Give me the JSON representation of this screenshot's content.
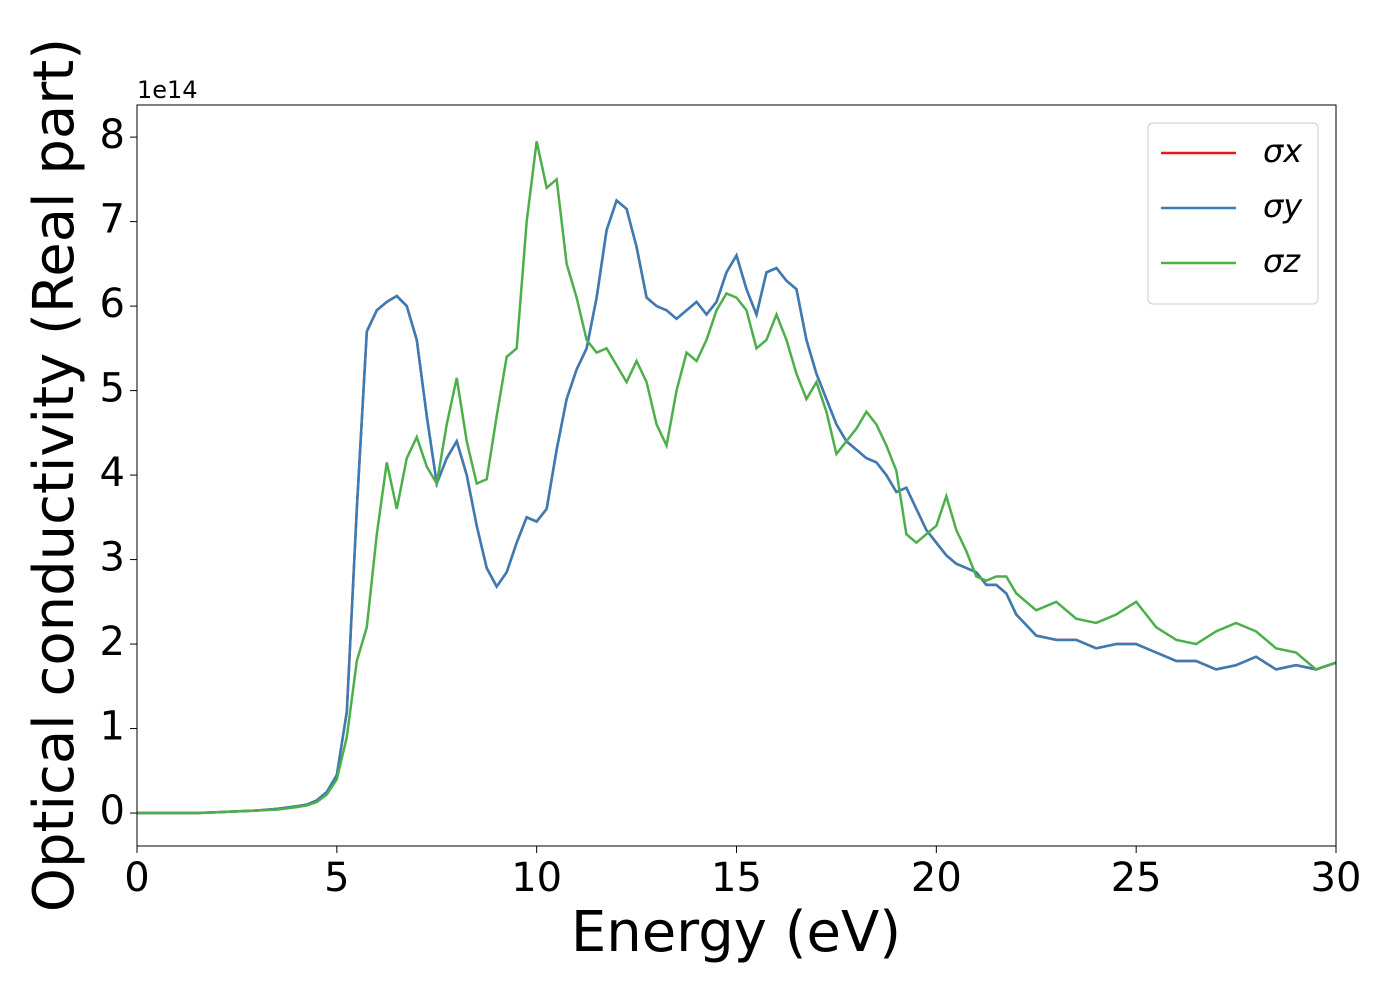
{
  "chart_data": {
    "type": "line",
    "xlabel": "Energy (eV)",
    "ylabel": "Optical conductivity (Real part)",
    "y_offset_label": "1e14",
    "x": [
      0,
      0.5,
      1,
      1.5,
      2,
      2.5,
      3,
      3.5,
      4,
      4.25,
      4.5,
      4.75,
      5,
      5.25,
      5.5,
      5.75,
      6,
      6.25,
      6.5,
      6.75,
      7,
      7.25,
      7.5,
      7.75,
      8,
      8.25,
      8.5,
      8.75,
      9,
      9.25,
      9.5,
      9.75,
      10,
      10.25,
      10.5,
      10.75,
      11,
      11.25,
      11.5,
      11.75,
      12,
      12.25,
      12.5,
      12.75,
      13,
      13.25,
      13.5,
      13.75,
      14,
      14.25,
      14.5,
      14.75,
      15,
      15.25,
      15.5,
      15.75,
      16,
      16.25,
      16.5,
      16.75,
      17,
      17.25,
      17.5,
      17.75,
      18,
      18.25,
      18.5,
      18.75,
      19,
      19.25,
      19.5,
      19.75,
      20,
      20.25,
      20.5,
      20.75,
      21,
      21.25,
      21.5,
      21.75,
      22,
      22.5,
      23,
      23.5,
      24,
      24.5,
      25,
      25.5,
      26,
      26.5,
      27,
      27.5,
      28,
      28.5,
      29,
      29.5,
      30
    ],
    "series": [
      {
        "name": "σx",
        "color": "#e41a1c",
        "values": [
          0,
          0,
          0,
          0,
          0.01,
          0.02,
          0.03,
          0.05,
          0.08,
          0.1,
          0.15,
          0.25,
          0.45,
          1.2,
          3.6,
          5.7,
          5.95,
          6.05,
          6.12,
          6.0,
          5.6,
          4.7,
          3.9,
          4.2,
          4.4,
          4.0,
          3.4,
          2.9,
          2.68,
          2.85,
          3.2,
          3.5,
          3.45,
          3.6,
          4.3,
          4.9,
          5.25,
          5.5,
          6.1,
          6.9,
          7.25,
          7.15,
          6.7,
          6.1,
          6.0,
          5.95,
          5.85,
          5.95,
          6.05,
          5.9,
          6.05,
          6.4,
          6.6,
          6.2,
          5.9,
          6.4,
          6.45,
          6.3,
          6.2,
          5.6,
          5.2,
          4.9,
          4.6,
          4.4,
          4.3,
          4.2,
          4.15,
          4.0,
          3.8,
          3.85,
          3.6,
          3.35,
          3.2,
          3.05,
          2.95,
          2.9,
          2.85,
          2.7,
          2.7,
          2.6,
          2.35,
          2.1,
          2.05,
          2.05,
          1.95,
          2.0,
          2.0,
          1.9,
          1.8,
          1.8,
          1.7,
          1.75,
          1.85,
          1.7,
          1.75,
          1.7,
          1.78
        ]
      },
      {
        "name": "σy",
        "color": "#377eb8",
        "values": [
          0,
          0,
          0,
          0,
          0.01,
          0.02,
          0.03,
          0.05,
          0.08,
          0.1,
          0.15,
          0.25,
          0.45,
          1.2,
          3.6,
          5.7,
          5.95,
          6.05,
          6.12,
          6.0,
          5.6,
          4.7,
          3.9,
          4.2,
          4.4,
          4.0,
          3.4,
          2.9,
          2.68,
          2.85,
          3.2,
          3.5,
          3.45,
          3.6,
          4.3,
          4.9,
          5.25,
          5.5,
          6.1,
          6.9,
          7.25,
          7.15,
          6.7,
          6.1,
          6.0,
          5.95,
          5.85,
          5.95,
          6.05,
          5.9,
          6.05,
          6.4,
          6.6,
          6.2,
          5.9,
          6.4,
          6.45,
          6.3,
          6.2,
          5.6,
          5.2,
          4.9,
          4.6,
          4.4,
          4.3,
          4.2,
          4.15,
          4.0,
          3.8,
          3.85,
          3.6,
          3.35,
          3.2,
          3.05,
          2.95,
          2.9,
          2.85,
          2.7,
          2.7,
          2.6,
          2.35,
          2.1,
          2.05,
          2.05,
          1.95,
          2.0,
          2.0,
          1.9,
          1.8,
          1.8,
          1.7,
          1.75,
          1.85,
          1.7,
          1.75,
          1.7,
          1.78
        ]
      },
      {
        "name": "σz",
        "color": "#4daf4a",
        "values": [
          0,
          0,
          0,
          0,
          0.01,
          0.02,
          0.03,
          0.04,
          0.07,
          0.09,
          0.13,
          0.22,
          0.4,
          0.9,
          1.8,
          2.2,
          3.3,
          4.15,
          3.6,
          4.2,
          4.45,
          4.1,
          3.9,
          4.6,
          5.15,
          4.4,
          3.9,
          3.95,
          4.7,
          5.4,
          5.5,
          7.0,
          7.95,
          7.4,
          7.5,
          6.5,
          6.1,
          5.6,
          5.45,
          5.5,
          5.3,
          5.1,
          5.35,
          5.1,
          4.6,
          4.35,
          5.0,
          5.45,
          5.35,
          5.6,
          5.95,
          6.15,
          6.1,
          5.95,
          5.5,
          5.6,
          5.9,
          5.6,
          5.2,
          4.9,
          5.1,
          4.75,
          4.25,
          4.4,
          4.55,
          4.75,
          4.6,
          4.35,
          4.05,
          3.3,
          3.2,
          3.3,
          3.4,
          3.75,
          3.35,
          3.1,
          2.8,
          2.75,
          2.8,
          2.8,
          2.6,
          2.4,
          2.5,
          2.3,
          2.25,
          2.35,
          2.5,
          2.2,
          2.05,
          2.0,
          2.15,
          2.25,
          2.15,
          1.95,
          1.9,
          1.7,
          1.78
        ]
      }
    ],
    "xlim": [
      0,
      30
    ],
    "xticks": [
      0,
      5,
      10,
      15,
      20,
      25,
      30
    ],
    "ylim": [
      -0.39,
      8.38
    ],
    "yticks": [
      0,
      1,
      2,
      3,
      4,
      5,
      6,
      7,
      8
    ],
    "legend": "upper right",
    "grid": false
  }
}
